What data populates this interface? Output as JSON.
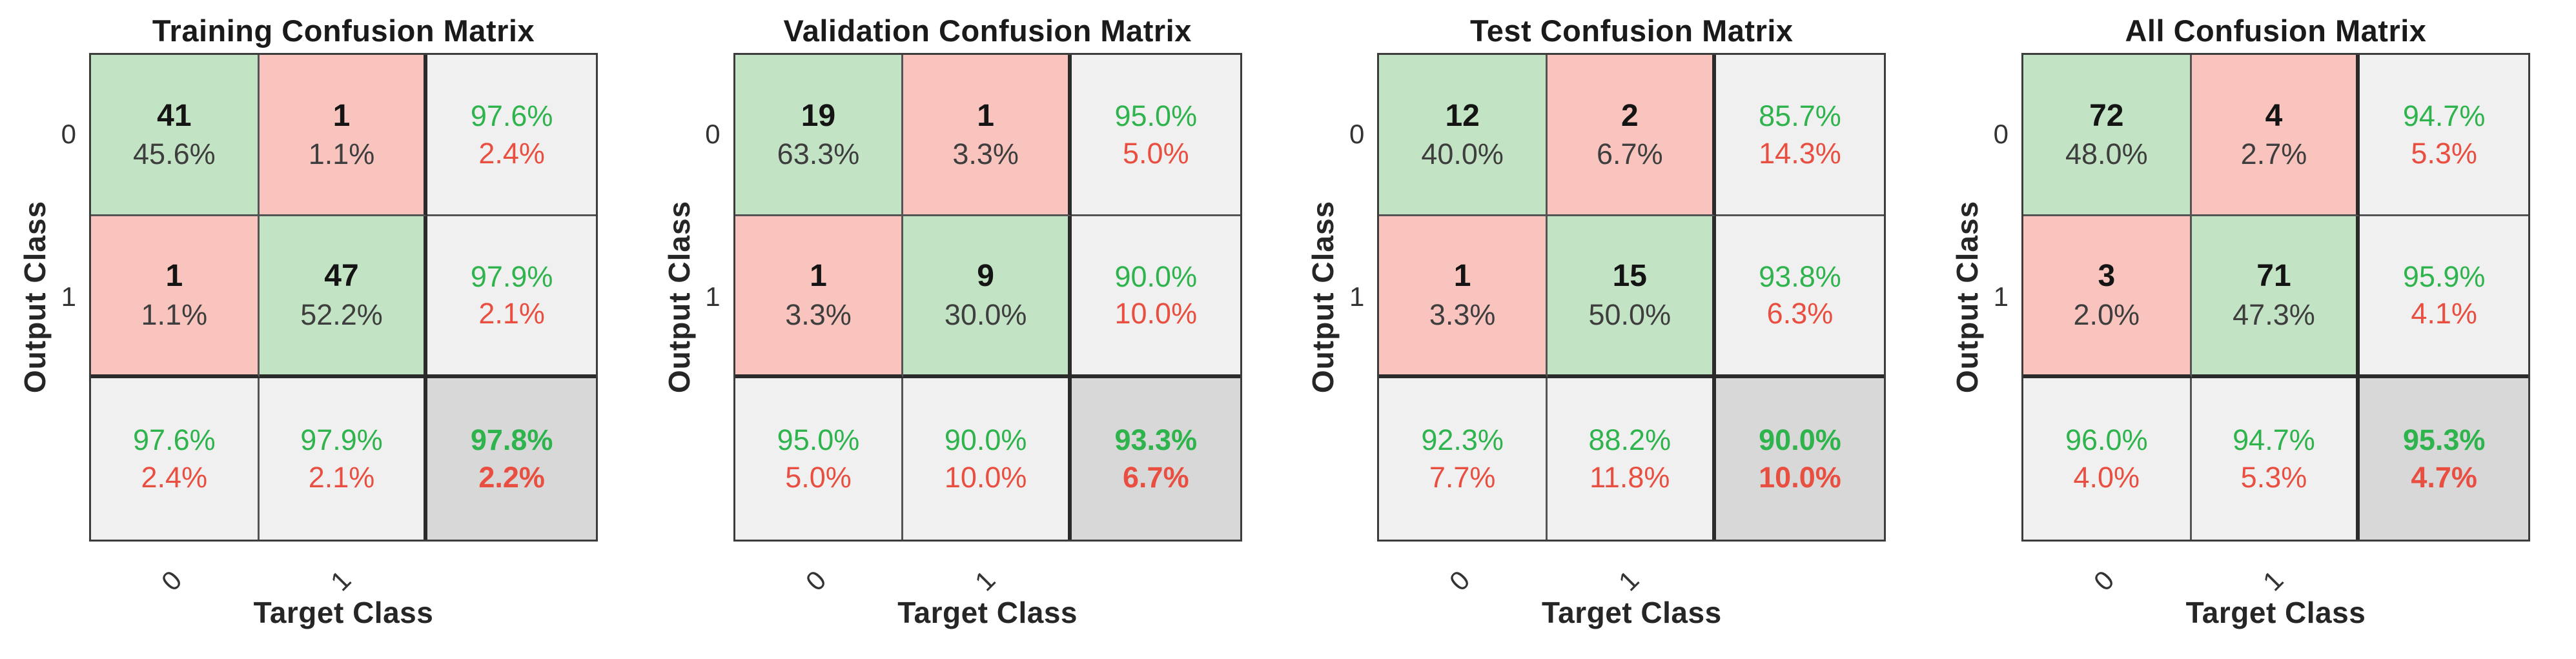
{
  "figure": {
    "y_axis_label": "Output Class",
    "x_axis_label": "Target Class",
    "class_labels": [
      "0",
      "1"
    ],
    "colors": {
      "diagonal_cell_green": "#c3e4c4",
      "offdiagonal_cell_pink": "#f9c4be",
      "summary_cell_gray": "#f0f0f0",
      "corner_cell_gray": "#d8d8d8",
      "correct_text_green": "#2eb34d",
      "error_text_red": "#e94f41"
    },
    "panels": [
      {
        "title": "Training Confusion Matrix",
        "cells": {
          "r0c0": {
            "count": "41",
            "pct": "45.6%"
          },
          "r0c1": {
            "count": "1",
            "pct": "1.1%"
          },
          "r0sum": {
            "green": "97.6%",
            "red": "2.4%"
          },
          "r1c0": {
            "count": "1",
            "pct": "1.1%"
          },
          "r1c1": {
            "count": "47",
            "pct": "52.2%"
          },
          "r1sum": {
            "green": "97.9%",
            "red": "2.1%"
          },
          "c0sum": {
            "green": "97.6%",
            "red": "2.4%"
          },
          "c1sum": {
            "green": "97.9%",
            "red": "2.1%"
          },
          "total": {
            "green": "97.8%",
            "red": "2.2%"
          }
        }
      },
      {
        "title": "Validation Confusion Matrix",
        "cells": {
          "r0c0": {
            "count": "19",
            "pct": "63.3%"
          },
          "r0c1": {
            "count": "1",
            "pct": "3.3%"
          },
          "r0sum": {
            "green": "95.0%",
            "red": "5.0%"
          },
          "r1c0": {
            "count": "1",
            "pct": "3.3%"
          },
          "r1c1": {
            "count": "9",
            "pct": "30.0%"
          },
          "r1sum": {
            "green": "90.0%",
            "red": "10.0%"
          },
          "c0sum": {
            "green": "95.0%",
            "red": "5.0%"
          },
          "c1sum": {
            "green": "90.0%",
            "red": "10.0%"
          },
          "total": {
            "green": "93.3%",
            "red": "6.7%"
          }
        }
      },
      {
        "title": "Test Confusion Matrix",
        "cells": {
          "r0c0": {
            "count": "12",
            "pct": "40.0%"
          },
          "r0c1": {
            "count": "2",
            "pct": "6.7%"
          },
          "r0sum": {
            "green": "85.7%",
            "red": "14.3%"
          },
          "r1c0": {
            "count": "1",
            "pct": "3.3%"
          },
          "r1c1": {
            "count": "15",
            "pct": "50.0%"
          },
          "r1sum": {
            "green": "93.8%",
            "red": "6.3%"
          },
          "c0sum": {
            "green": "92.3%",
            "red": "7.7%"
          },
          "c1sum": {
            "green": "88.2%",
            "red": "11.8%"
          },
          "total": {
            "green": "90.0%",
            "red": "10.0%"
          }
        }
      },
      {
        "title": "All Confusion Matrix",
        "cells": {
          "r0c0": {
            "count": "72",
            "pct": "48.0%"
          },
          "r0c1": {
            "count": "4",
            "pct": "2.7%"
          },
          "r0sum": {
            "green": "94.7%",
            "red": "5.3%"
          },
          "r1c0": {
            "count": "3",
            "pct": "2.0%"
          },
          "r1c1": {
            "count": "71",
            "pct": "47.3%"
          },
          "r1sum": {
            "green": "95.9%",
            "red": "4.1%"
          },
          "c0sum": {
            "green": "96.0%",
            "red": "4.0%"
          },
          "c1sum": {
            "green": "94.7%",
            "red": "5.3%"
          },
          "total": {
            "green": "95.3%",
            "red": "4.7%"
          }
        }
      }
    ]
  },
  "chart_data": [
    {
      "type": "heatmap",
      "title": "Training Confusion Matrix",
      "xlabel": "Target Class",
      "ylabel": "Output Class",
      "classes": [
        "0",
        "1"
      ],
      "counts": [
        [
          41,
          1
        ],
        [
          1,
          47
        ]
      ],
      "percent_of_total": [
        [
          45.6,
          1.1
        ],
        [
          1.1,
          52.2
        ]
      ],
      "row_summary_pct_correct_incorrect": [
        [
          97.6,
          2.4
        ],
        [
          97.9,
          2.1
        ]
      ],
      "col_summary_pct_correct_incorrect": [
        [
          97.6,
          2.4
        ],
        [
          97.9,
          2.1
        ]
      ],
      "overall_pct_correct_incorrect": [
        97.8,
        2.2
      ]
    },
    {
      "type": "heatmap",
      "title": "Validation Confusion Matrix",
      "xlabel": "Target Class",
      "ylabel": "Output Class",
      "classes": [
        "0",
        "1"
      ],
      "counts": [
        [
          19,
          1
        ],
        [
          1,
          9
        ]
      ],
      "percent_of_total": [
        [
          63.3,
          3.3
        ],
        [
          3.3,
          30.0
        ]
      ],
      "row_summary_pct_correct_incorrect": [
        [
          95.0,
          5.0
        ],
        [
          90.0,
          10.0
        ]
      ],
      "col_summary_pct_correct_incorrect": [
        [
          95.0,
          5.0
        ],
        [
          90.0,
          10.0
        ]
      ],
      "overall_pct_correct_incorrect": [
        93.3,
        6.7
      ]
    },
    {
      "type": "heatmap",
      "title": "Test Confusion Matrix",
      "xlabel": "Target Class",
      "ylabel": "Output Class",
      "classes": [
        "0",
        "1"
      ],
      "counts": [
        [
          12,
          2
        ],
        [
          1,
          15
        ]
      ],
      "percent_of_total": [
        [
          40.0,
          6.7
        ],
        [
          3.3,
          50.0
        ]
      ],
      "row_summary_pct_correct_incorrect": [
        [
          85.7,
          14.3
        ],
        [
          93.8,
          6.3
        ]
      ],
      "col_summary_pct_correct_incorrect": [
        [
          92.3,
          7.7
        ],
        [
          88.2,
          11.8
        ]
      ],
      "overall_pct_correct_incorrect": [
        90.0,
        10.0
      ]
    },
    {
      "type": "heatmap",
      "title": "All Confusion Matrix",
      "xlabel": "Target Class",
      "ylabel": "Output Class",
      "classes": [
        "0",
        "1"
      ],
      "counts": [
        [
          72,
          4
        ],
        [
          3,
          71
        ]
      ],
      "percent_of_total": [
        [
          48.0,
          2.7
        ],
        [
          2.0,
          47.3
        ]
      ],
      "row_summary_pct_correct_incorrect": [
        [
          94.7,
          5.3
        ],
        [
          95.9,
          4.1
        ]
      ],
      "col_summary_pct_correct_incorrect": [
        [
          96.0,
          4.0
        ],
        [
          94.7,
          5.3
        ]
      ],
      "overall_pct_correct_incorrect": [
        95.3,
        4.7
      ]
    }
  ]
}
